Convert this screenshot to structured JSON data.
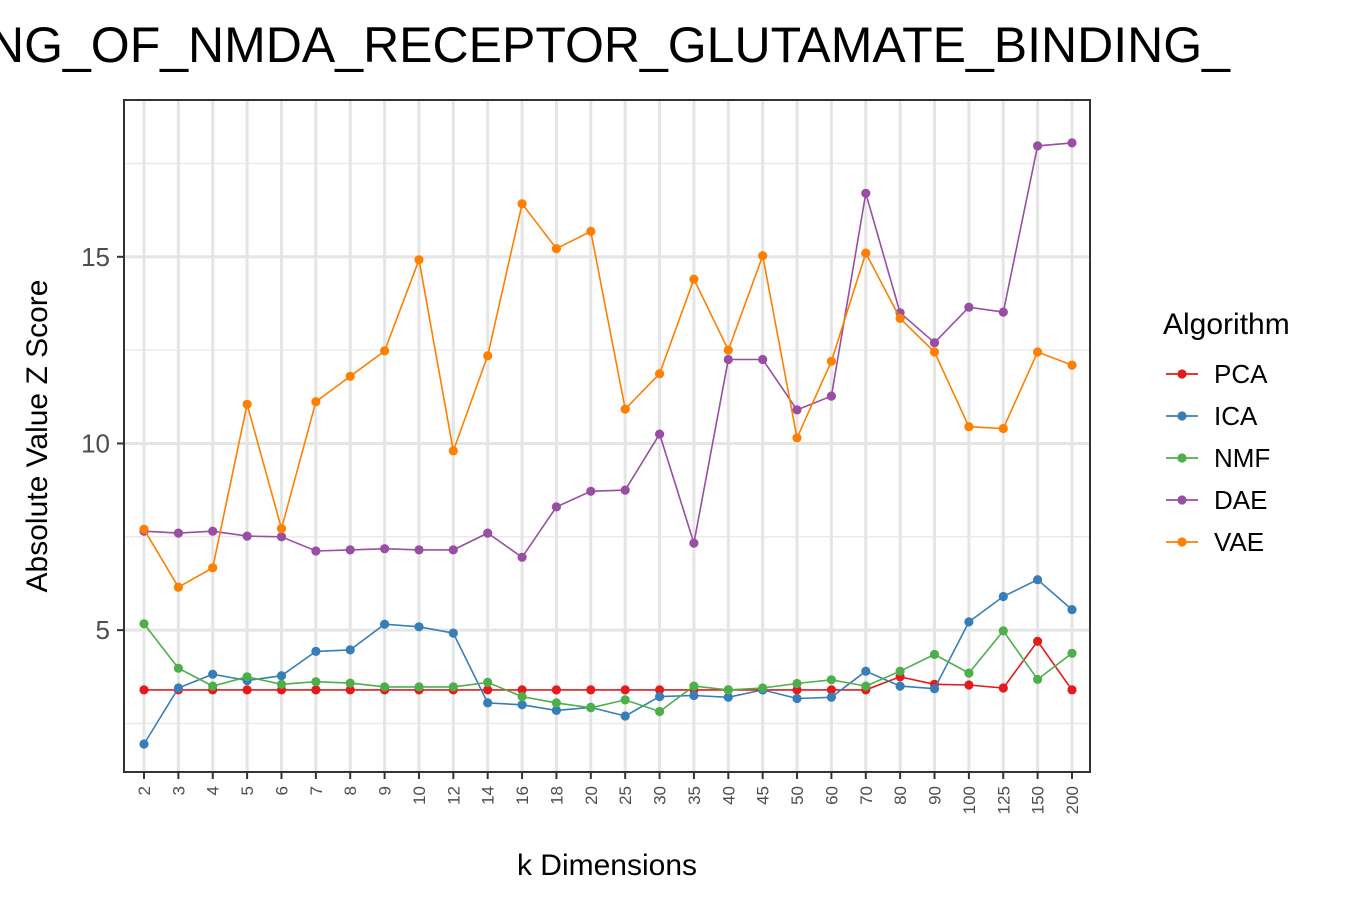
{
  "chart_data": {
    "type": "line",
    "title": "NG_OF_NMDA_RECEPTOR_GLUTAMATE_BINDING_",
    "xlabel": "k Dimensions",
    "ylabel": "Absolute Value Z Score",
    "categories": [
      "2",
      "3",
      "4",
      "5",
      "6",
      "7",
      "8",
      "9",
      "10",
      "12",
      "14",
      "16",
      "18",
      "20",
      "25",
      "30",
      "35",
      "40",
      "45",
      "50",
      "60",
      "70",
      "80",
      "90",
      "100",
      "125",
      "150",
      "200"
    ],
    "ylim": [
      1.2,
      19.2
    ],
    "yticks": [
      5,
      10,
      15
    ],
    "ytick_labels": [
      "5",
      "10",
      "15"
    ],
    "grid": true,
    "legend": {
      "title": "Algorithm",
      "position": "right"
    },
    "series": [
      {
        "name": "PCA",
        "color": "#e41a1c",
        "values": [
          3.4,
          3.4,
          3.4,
          3.4,
          3.4,
          3.4,
          3.4,
          3.4,
          3.4,
          3.4,
          3.4,
          3.4,
          3.4,
          3.4,
          3.4,
          3.4,
          3.4,
          3.4,
          3.4,
          3.4,
          3.4,
          3.4,
          3.75,
          3.55,
          3.53,
          3.45,
          4.7,
          3.4
        ]
      },
      {
        "name": "ICA",
        "color": "#377eb8",
        "values": [
          1.95,
          3.45,
          3.82,
          3.65,
          3.78,
          4.43,
          4.47,
          5.16,
          5.09,
          4.92,
          3.05,
          3.0,
          2.85,
          2.93,
          2.7,
          3.22,
          3.25,
          3.2,
          3.4,
          3.17,
          3.2,
          3.9,
          3.5,
          3.43,
          5.22,
          5.9,
          6.35,
          5.55
        ]
      },
      {
        "name": "NMF",
        "color": "#4daf4a",
        "values": [
          5.17,
          3.98,
          3.5,
          3.75,
          3.55,
          3.62,
          3.58,
          3.48,
          3.48,
          3.48,
          3.6,
          3.22,
          3.05,
          2.92,
          3.13,
          2.82,
          3.5,
          3.4,
          3.45,
          3.57,
          3.67,
          3.5,
          3.9,
          4.35,
          3.85,
          4.98,
          3.68,
          4.38
        ]
      },
      {
        "name": "DAE",
        "color": "#984ea3",
        "values": [
          7.65,
          7.6,
          7.65,
          7.52,
          7.5,
          7.12,
          7.15,
          7.18,
          7.15,
          7.15,
          7.6,
          6.95,
          8.3,
          8.72,
          8.75,
          10.25,
          7.33,
          12.25,
          12.25,
          10.9,
          11.27,
          16.7,
          13.5,
          12.7,
          13.65,
          13.52,
          17.97,
          18.05
        ]
      },
      {
        "name": "VAE",
        "color": "#ff7f00",
        "values": [
          7.7,
          6.15,
          6.67,
          11.05,
          7.72,
          11.12,
          11.8,
          12.48,
          14.92,
          9.8,
          12.35,
          16.42,
          15.22,
          15.68,
          10.92,
          11.87,
          14.4,
          12.5,
          15.03,
          10.15,
          12.2,
          15.1,
          13.35,
          12.45,
          10.45,
          10.4,
          12.45,
          12.1
        ]
      }
    ]
  }
}
